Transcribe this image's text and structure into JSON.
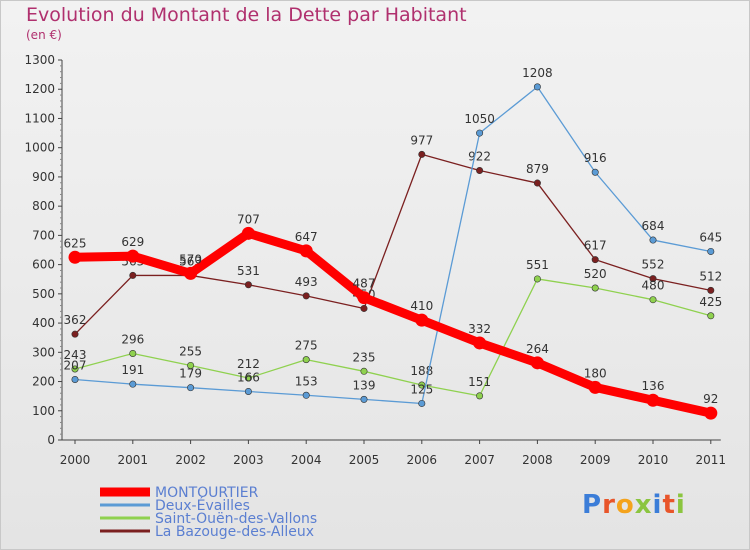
{
  "chart_data": {
    "type": "line",
    "title": "Evolution du Montant de la Dette par Habitant",
    "subtitle": "(en €)",
    "categories": [
      "2000",
      "2001",
      "2002",
      "2003",
      "2004",
      "2005",
      "2006",
      "2007",
      "2008",
      "2009",
      "2010",
      "2011"
    ],
    "ylim": [
      0,
      1300
    ],
    "yticks": [
      0,
      100,
      200,
      300,
      400,
      500,
      600,
      700,
      800,
      900,
      1000,
      1100,
      1200,
      1300
    ],
    "grid": false,
    "legend_position": "bottom-left",
    "series": [
      {
        "name": "MONTOURTIER",
        "color": "#ff0000",
        "values": [
          625,
          629,
          570,
          707,
          647,
          487,
          410,
          332,
          264,
          180,
          136,
          92
        ]
      },
      {
        "name": "Deux-Évailles",
        "color": "#5b9bd5",
        "values": [
          207,
          191,
          179,
          166,
          153,
          139,
          125,
          1050,
          1208,
          916,
          684,
          645
        ]
      },
      {
        "name": "Saint-Ouën-des-Vallons",
        "color": "#8fd14f",
        "values": [
          243,
          296,
          255,
          212,
          275,
          235,
          188,
          151,
          551,
          520,
          480,
          425
        ]
      },
      {
        "name": "La Bazouge-des-Alleux",
        "color": "#7b2020",
        "values": [
          362,
          563,
          563,
          531,
          493,
          450,
          977,
          922,
          879,
          617,
          552,
          512
        ]
      }
    ]
  },
  "logo": {
    "text": "Proxiti"
  }
}
